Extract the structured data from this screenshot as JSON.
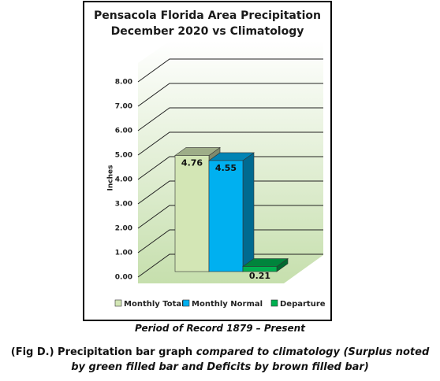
{
  "chart_data": {
    "type": "bar3d",
    "title": [
      "Pensacola Florida Area Precipitation",
      "December 2020 vs Climatology"
    ],
    "y_label": "Inches",
    "categories": [
      "Monthly Total",
      "Monthly Normal",
      "Departure"
    ],
    "values": [
      4.76,
      4.55,
      0.21
    ],
    "colors": [
      "#d3e6b5",
      "#00b0f0",
      "#00b050"
    ],
    "ylim": [
      0,
      8
    ],
    "yticks": [
      {
        "value": 0,
        "label": "0.00"
      },
      {
        "value": 1,
        "label": "1.00"
      },
      {
        "value": 2,
        "label": "2.00"
      },
      {
        "value": 3,
        "label": "3.00"
      },
      {
        "value": 4,
        "label": "4.00"
      },
      {
        "value": 5,
        "label": "5.00"
      },
      {
        "value": 6,
        "label": "6.00"
      },
      {
        "value": 7,
        "label": "7.00"
      },
      {
        "value": 8,
        "label": "8.00"
      }
    ],
    "grid": true,
    "legend": "bottom"
  },
  "period_note": "Period of Record 1879 – Present",
  "caption": {
    "label": "(Fig D.) Precipitation bar graph",
    "text": "compared to climatology (Surplus noted by green filled bar and Deficits by brown filled bar)"
  }
}
